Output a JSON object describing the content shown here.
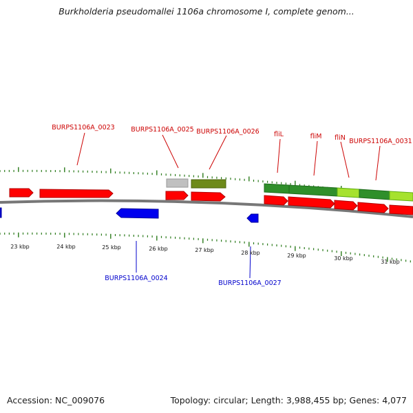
{
  "title": "Burkholderia pseudomallei 1106a chromosome I, complete genom...",
  "footer": {
    "accession": "Accession: NC_009076",
    "summary": "Topology: circular; Length: 3,988,455 bp; Genes: 4,077"
  },
  "colors": {
    "forward_label": "#cc0000",
    "reverse_label": "#0000cc",
    "forward_gene": "#ff0000",
    "reverse_gene": "#0000ee",
    "backbone": "#777777",
    "tick": "#2a7a1a",
    "grey_feature": "#c0c0c0",
    "olive_feature": "#6e8a1a",
    "green_feature": "#2f8f2a",
    "light_green_feature": "#a6e22e"
  },
  "scale_labels": [
    "23 kbp",
    "24 kbp",
    "25 kbp",
    "26 kbp",
    "27 kbp",
    "28 kbp",
    "29 kbp",
    "30 kbp",
    "31 kbp"
  ],
  "gene_labels_forward": [
    "BURPS1106A_0023",
    "BURPS1106A_0025",
    "BURPS1106A_0026",
    "fliL",
    "fliM",
    "fliN",
    "BURPS1106A_0031"
  ],
  "gene_labels_reverse": [
    "BURPS1106A_0024",
    "BURPS1106A_0027"
  ]
}
